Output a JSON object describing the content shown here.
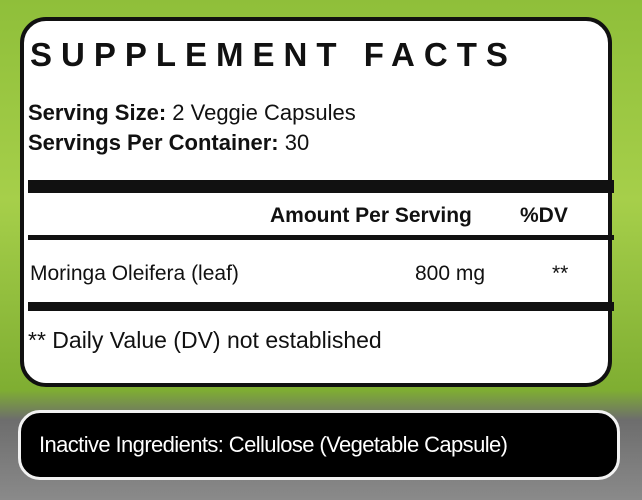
{
  "title": "SUPPLEMENT FACTS",
  "serving_size": {
    "label": "Serving Size:",
    "value": "2 Veggie Capsules"
  },
  "servings_per_container": {
    "label": "Servings Per Container:",
    "value": "30"
  },
  "table": {
    "headers": [
      "Amount Per Serving",
      "%DV"
    ],
    "rows": [
      {
        "name": "Moringa Oleifera (leaf)",
        "amount": "800 mg",
        "dv": "**"
      }
    ]
  },
  "footnote": "** Daily Value (DV) not established",
  "inactive": "Inactive Ingredients: Cellulose (Vegetable Capsule)"
}
